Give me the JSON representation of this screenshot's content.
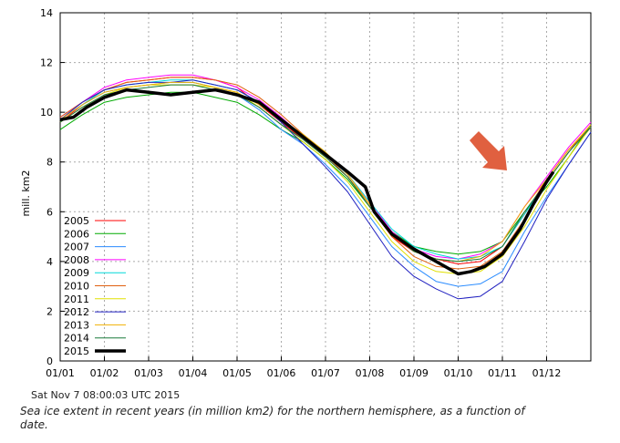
{
  "chart_data": {
    "type": "line",
    "title": "",
    "xlabel": "",
    "ylabel": "mill. km2",
    "xlim": [
      0,
      12
    ],
    "ylim": [
      0,
      14
    ],
    "x_ticks": [
      "01/01",
      "01/02",
      "01/03",
      "01/04",
      "01/05",
      "01/06",
      "01/07",
      "01/08",
      "01/09",
      "01/10",
      "01/11",
      "01/12"
    ],
    "y_ticks": [
      0,
      2,
      4,
      6,
      8,
      10,
      12,
      14
    ],
    "grid": true,
    "legend_position": "bottom-left",
    "timestamp": "Sat Nov 7 08:00:03 UTC 2015",
    "annotation": "red arrow pointing at the latest 2015 value",
    "series": [
      {
        "name": "2005",
        "color": "#ff0000",
        "x": [
          0,
          0.5,
          1,
          1.5,
          2,
          2.5,
          3,
          3.5,
          4,
          4.5,
          5,
          5.5,
          6,
          6.5,
          7,
          7.5,
          8,
          8.5,
          9,
          9.5,
          10,
          10.5,
          11,
          11.5,
          12
        ],
        "values": [
          9.6,
          10.3,
          10.9,
          11.2,
          11.3,
          11.4,
          11.4,
          11.3,
          11.0,
          10.3,
          9.6,
          8.9,
          8.2,
          7.4,
          6.2,
          5.0,
          4.4,
          4.1,
          3.9,
          4.0,
          4.6,
          5.9,
          7.3,
          8.5,
          9.4
        ]
      },
      {
        "name": "2006",
        "color": "#00aa00",
        "x": [
          0,
          0.5,
          1,
          1.5,
          2,
          2.5,
          3,
          3.5,
          4,
          4.5,
          5,
          5.5,
          6,
          6.5,
          7,
          7.5,
          8,
          8.5,
          9,
          9.5,
          10,
          10.5,
          11,
          11.5,
          12
        ],
        "values": [
          9.3,
          9.9,
          10.4,
          10.6,
          10.7,
          10.8,
          10.8,
          10.6,
          10.4,
          9.9,
          9.3,
          8.8,
          8.1,
          7.3,
          6.2,
          5.2,
          4.6,
          4.4,
          4.3,
          4.4,
          4.8,
          6.0,
          7.0,
          8.2,
          9.5
        ]
      },
      {
        "name": "2007",
        "color": "#2b8cff",
        "x": [
          0,
          0.5,
          1,
          1.5,
          2,
          2.5,
          3,
          3.5,
          4,
          4.5,
          5,
          5.5,
          6,
          6.5,
          7,
          7.5,
          8,
          8.5,
          9,
          9.5,
          10,
          10.5,
          11,
          11.5,
          12
        ],
        "values": [
          9.7,
          10.3,
          10.8,
          11.0,
          11.1,
          11.2,
          11.2,
          11.0,
          10.7,
          10.1,
          9.3,
          8.7,
          7.9,
          7.0,
          5.8,
          4.6,
          3.8,
          3.2,
          3.0,
          3.1,
          3.6,
          5.2,
          6.6,
          7.9,
          9.2
        ]
      },
      {
        "name": "2008",
        "color": "#ff00ff",
        "x": [
          0,
          0.5,
          1,
          1.5,
          2,
          2.5,
          3,
          3.5,
          4,
          4.5,
          5,
          5.5,
          6,
          6.5,
          7,
          7.5,
          8,
          8.5,
          9,
          9.5,
          10,
          10.5,
          11,
          11.5,
          12
        ],
        "values": [
          9.8,
          10.4,
          11.0,
          11.3,
          11.4,
          11.5,
          11.5,
          11.3,
          11.0,
          10.5,
          9.8,
          9.0,
          8.3,
          7.5,
          6.4,
          5.2,
          4.5,
          4.2,
          4.1,
          4.3,
          4.8,
          6.2,
          7.4,
          8.6,
          9.6
        ]
      },
      {
        "name": "2009",
        "color": "#00d8d8",
        "x": [
          0,
          0.5,
          1,
          1.5,
          2,
          2.5,
          3,
          3.5,
          4,
          4.5,
          5,
          5.5,
          6,
          6.5,
          7,
          7.5,
          8,
          8.5,
          9,
          9.5,
          10,
          10.5,
          11,
          11.5,
          12
        ],
        "values": [
          9.7,
          10.3,
          10.9,
          11.1,
          11.2,
          11.3,
          11.3,
          11.1,
          10.9,
          10.4,
          9.7,
          9.0,
          8.3,
          7.5,
          6.4,
          5.3,
          4.6,
          4.3,
          4.1,
          4.2,
          4.6,
          5.9,
          7.2,
          8.4,
          9.5
        ]
      },
      {
        "name": "2010",
        "color": "#e06010",
        "x": [
          0,
          0.5,
          1,
          1.5,
          2,
          2.5,
          3,
          3.5,
          4,
          4.5,
          5,
          5.5,
          6,
          6.5,
          7,
          7.5,
          8,
          8.5,
          9,
          9.5,
          10,
          10.5,
          11,
          11.5,
          12
        ],
        "values": [
          9.8,
          10.4,
          10.9,
          11.2,
          11.3,
          11.4,
          11.4,
          11.3,
          11.1,
          10.6,
          9.9,
          9.1,
          8.3,
          7.4,
          6.3,
          5.0,
          4.2,
          3.8,
          3.7,
          3.8,
          4.4,
          5.7,
          7.2,
          8.4,
          9.5
        ]
      },
      {
        "name": "2011",
        "color": "#e0e000",
        "x": [
          0,
          0.5,
          1,
          1.5,
          2,
          2.5,
          3,
          3.5,
          4,
          4.5,
          5,
          5.5,
          6,
          6.5,
          7,
          7.5,
          8,
          8.5,
          9,
          9.5,
          10,
          10.5,
          11,
          11.5,
          12
        ],
        "values": [
          9.6,
          10.2,
          10.7,
          11.0,
          11.1,
          11.1,
          11.1,
          11.0,
          10.8,
          10.2,
          9.5,
          8.8,
          8.1,
          7.2,
          6.0,
          4.8,
          4.0,
          3.6,
          3.5,
          3.6,
          4.2,
          5.4,
          6.9,
          8.2,
          9.4
        ]
      },
      {
        "name": "2012",
        "color": "#2020c0",
        "x": [
          0,
          0.5,
          1,
          1.5,
          2,
          2.5,
          3,
          3.5,
          4,
          4.5,
          5,
          5.5,
          6,
          6.5,
          7,
          7.5,
          8,
          8.5,
          9,
          9.5,
          10,
          10.5,
          11,
          11.5,
          12
        ],
        "values": [
          9.7,
          10.4,
          10.9,
          11.1,
          11.2,
          11.2,
          11.3,
          11.1,
          10.9,
          10.4,
          9.6,
          8.7,
          7.8,
          6.8,
          5.5,
          4.2,
          3.4,
          2.9,
          2.5,
          2.6,
          3.2,
          4.8,
          6.5,
          7.9,
          9.2
        ]
      },
      {
        "name": "2013",
        "color": "#f0b000",
        "x": [
          0,
          0.5,
          1,
          1.5,
          2,
          2.5,
          3,
          3.5,
          4,
          4.5,
          5,
          5.5,
          6,
          6.5,
          7,
          7.5,
          8,
          8.5,
          9,
          9.5,
          10,
          10.5,
          11,
          11.5,
          12
        ],
        "values": [
          9.7,
          10.3,
          10.8,
          11.0,
          11.1,
          11.2,
          11.2,
          11.0,
          10.8,
          10.3,
          9.7,
          9.1,
          8.4,
          7.5,
          6.3,
          5.1,
          4.4,
          4.1,
          4.0,
          4.2,
          4.8,
          6.2,
          7.3,
          8.5,
          9.5
        ]
      },
      {
        "name": "2014",
        "color": "#1a7a3a",
        "x": [
          0,
          0.5,
          1,
          1.5,
          2,
          2.5,
          3,
          3.5,
          4,
          4.5,
          5,
          5.5,
          6,
          6.5,
          7,
          7.5,
          8,
          8.5,
          9,
          9.5,
          10,
          10.5,
          11,
          11.5,
          12
        ],
        "values": [
          9.6,
          10.2,
          10.7,
          10.9,
          11.0,
          11.1,
          11.1,
          10.9,
          10.7,
          10.2,
          9.5,
          8.9,
          8.2,
          7.4,
          6.2,
          5.1,
          4.4,
          4.1,
          4.0,
          4.1,
          4.6,
          6.0,
          7.2,
          8.4,
          9.4
        ]
      },
      {
        "name": "2015",
        "color": "#000000",
        "x": [
          0,
          0.3,
          0.6,
          1,
          1.5,
          2,
          2.5,
          3,
          3.5,
          4,
          4.5,
          5,
          5.5,
          6,
          6.5,
          6.9,
          7.1,
          7.5,
          8,
          8.5,
          8.8,
          9,
          9.3,
          9.6,
          10,
          10.4,
          10.7,
          11,
          11.15
        ],
        "values": [
          9.7,
          9.8,
          10.2,
          10.6,
          10.9,
          10.8,
          10.7,
          10.8,
          10.9,
          10.7,
          10.4,
          9.7,
          9.0,
          8.3,
          7.6,
          7.0,
          6.0,
          5.1,
          4.5,
          4.0,
          3.7,
          3.5,
          3.6,
          3.8,
          4.3,
          5.3,
          6.3,
          7.2,
          7.6
        ]
      }
    ]
  },
  "caption": "Sea ice extent in recent years (in million km2) for the northern hemisphere, as a function of date."
}
